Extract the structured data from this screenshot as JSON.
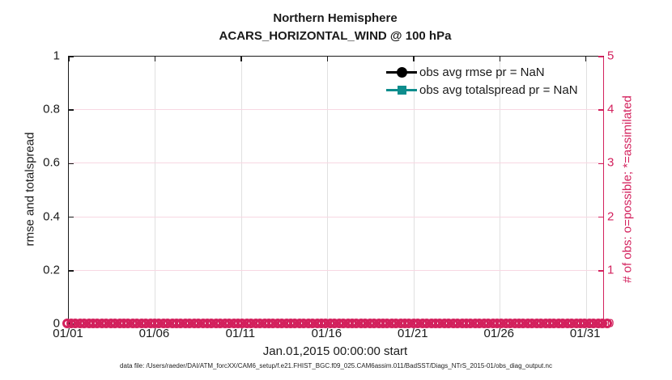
{
  "title": {
    "line1": "Northern Hemisphere",
    "line2": "ACARS_HORIZONTAL_WIND @ 100 hPa"
  },
  "legend": [
    {
      "label": "obs avg rmse pr = NaN",
      "marker": "circle",
      "color": "#000000"
    },
    {
      "label": "obs avg totalspread pr = NaN",
      "marker": "square",
      "color": "#0e8d8d"
    }
  ],
  "left_axis": {
    "label": "rmse and totalspread",
    "ticks": [
      "0",
      "0.2",
      "0.4",
      "0.6",
      "0.8",
      "1"
    ]
  },
  "right_axis": {
    "label": "# of obs: o=possible; *=assimilated",
    "ticks": [
      "0",
      "1",
      "2",
      "3",
      "4",
      "5"
    ],
    "color": "#d3215d"
  },
  "x_axis": {
    "ticks": [
      "01/01",
      "01/06",
      "01/11",
      "01/16",
      "01/21",
      "01/26",
      "01/31"
    ],
    "tick_days": [
      1,
      6,
      11,
      16,
      21,
      26,
      31
    ],
    "span_days": 31,
    "label": "Jan.01,2015 00:00:00 start"
  },
  "footer": "data file: /Users/raeder/DAI/ATM_forcXX/CAM6_setup/f.e21.FHIST_BGC.f09_025.CAM6assim.011/BadSST/Diags_NTrS_2015-01/obs_diag_output.nc",
  "colors": {
    "pink": "#d3215d",
    "pink_grid": "#f8d7e2",
    "gray_grid": "#e0e0e0",
    "teal": "#0e8d8d",
    "black": "#000000"
  },
  "chart_data": {
    "type": "line",
    "title": "Northern Hemisphere — ACARS_HORIZONTAL_WIND @ 100 hPa",
    "x_range": [
      "2015-01-01 00:00",
      "2015-02-01 00:00"
    ],
    "x_tick_labels": [
      "01/01",
      "01/06",
      "01/11",
      "01/16",
      "01/21",
      "01/26",
      "01/31"
    ],
    "left_ylabel": "rmse and totalspread",
    "left_ylim": [
      0,
      1
    ],
    "right_ylabel": "# of obs: o=possible; *=assimilated",
    "right_ylim": [
      0,
      5
    ],
    "grid": true,
    "legend_position": "upper-right-inside-no-box",
    "series": [
      {
        "name": "obs avg rmse pr = NaN",
        "axis": "left",
        "marker": "circle",
        "color": "#000000",
        "values": "NaN — no data plotted"
      },
      {
        "name": "obs avg totalspread pr = NaN",
        "axis": "left",
        "marker": "square",
        "color": "#0e8d8d",
        "values": "NaN — no data plotted"
      },
      {
        "name": "# of obs possible (o)",
        "axis": "right",
        "marker": "o",
        "color": "#d3215d",
        "value_constant": 0,
        "n_points": 124
      },
      {
        "name": "# of obs assimilated (*)",
        "axis": "right",
        "marker": "*",
        "color": "#d3215d",
        "value_constant": 0,
        "n_points": 124
      }
    ],
    "xlabel": "Jan.01,2015 00:00:00 start"
  }
}
